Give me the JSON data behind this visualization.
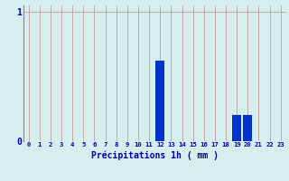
{
  "categories": [
    0,
    1,
    2,
    3,
    4,
    5,
    6,
    7,
    8,
    9,
    10,
    11,
    12,
    13,
    14,
    15,
    16,
    17,
    18,
    19,
    20,
    21,
    22,
    23
  ],
  "values": [
    0,
    0,
    0,
    0,
    0,
    0,
    0,
    0,
    0,
    0,
    0,
    0,
    0.62,
    0,
    0,
    0,
    0,
    0,
    0,
    0.2,
    0.2,
    0,
    0,
    0
  ],
  "bar_color": "#0033cc",
  "background_color": "#d6eeee",
  "grid_color": "#c8a8a8",
  "xlabel": "Précipitations 1h ( mm )",
  "xlabel_color": "#0000bb",
  "tick_color": "#0000bb",
  "ylim": [
    0,
    1.05
  ],
  "xlim": [
    -0.5,
    23.5
  ],
  "yticks": [
    0,
    1
  ],
  "xticks": [
    0,
    1,
    2,
    3,
    4,
    5,
    6,
    7,
    8,
    9,
    10,
    11,
    12,
    13,
    14,
    15,
    16,
    17,
    18,
    19,
    20,
    21,
    22,
    23
  ]
}
